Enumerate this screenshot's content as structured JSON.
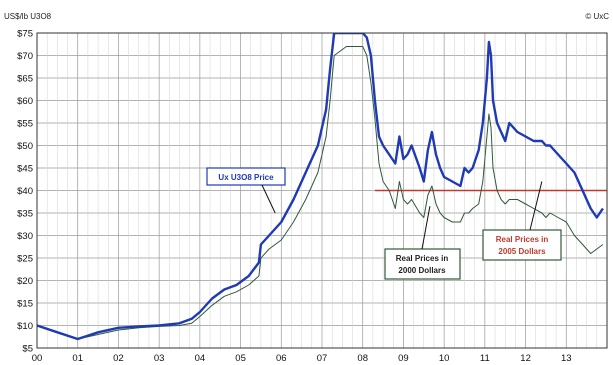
{
  "header": {
    "unit_label": "US$/lb U3O8",
    "copyright": "© UxC"
  },
  "chart_data": {
    "type": "line",
    "x_tick_labels": [
      "00",
      "01",
      "02",
      "03",
      "04",
      "05",
      "06",
      "07",
      "08",
      "09",
      "10",
      "11",
      "12",
      "13"
    ],
    "y_tick_labels": [
      "$75",
      "$70",
      "$65",
      "$60",
      "$55",
      "$50",
      "$45",
      "$40",
      "$35",
      "$30",
      "$25",
      "$20",
      "$15",
      "$10",
      "$5"
    ],
    "ylim": [
      5,
      75
    ],
    "grid": true,
    "reference_line": {
      "y": 40,
      "color": "#c0392b"
    },
    "series": [
      {
        "name": "Ux U3O8 Price",
        "color": "#1f3ab5",
        "x": [
          2000.0,
          2000.5,
          2001.0,
          2001.5,
          2002.0,
          2002.5,
          2003.0,
          2003.5,
          2003.8,
          2004.0,
          2004.3,
          2004.6,
          2004.9,
          2005.2,
          2005.45,
          2005.5,
          2005.7,
          2006.0,
          2006.3,
          2006.6,
          2006.9,
          2007.1,
          2007.2,
          2007.3,
          2007.6,
          2007.8,
          2007.9,
          2008.0,
          2008.1,
          2008.2,
          2008.3,
          2008.4,
          2008.5,
          2008.65,
          2008.8,
          2008.9,
          2009.0,
          2009.1,
          2009.2,
          2009.4,
          2009.5,
          2009.6,
          2009.7,
          2009.8,
          2009.9,
          2010.0,
          2010.2,
          2010.4,
          2010.5,
          2010.6,
          2010.7,
          2010.85,
          2010.95,
          2011.05,
          2011.1,
          2011.15,
          2011.2,
          2011.3,
          2011.4,
          2011.5,
          2011.6,
          2011.8,
          2012.0,
          2012.2,
          2012.4,
          2012.5,
          2012.6,
          2012.8,
          2013.0,
          2013.2,
          2013.4,
          2013.5,
          2013.6,
          2013.75,
          2013.9
        ],
        "y": [
          10,
          8.5,
          7,
          8.5,
          9.5,
          9.8,
          10,
          10.5,
          11.5,
          13,
          16,
          18,
          19,
          21,
          24,
          28,
          30,
          33,
          38,
          44,
          50,
          58,
          67,
          75,
          75,
          75,
          75,
          75,
          74,
          70,
          60,
          52,
          50,
          48,
          46,
          52,
          47,
          48,
          50,
          45,
          42,
          49,
          53,
          48,
          45,
          43,
          42,
          41,
          45,
          44,
          45,
          49,
          55,
          65,
          73,
          70,
          60,
          55,
          53,
          51,
          55,
          53,
          52,
          51,
          51,
          50,
          50,
          48,
          46,
          44,
          40,
          38,
          36,
          34,
          36
        ]
      },
      {
        "name": "Real Prices in 2000 Dollars",
        "color": "#2f5a3a",
        "x": [
          2000.0,
          2000.5,
          2001.0,
          2001.5,
          2002.0,
          2002.5,
          2003.0,
          2003.5,
          2003.8,
          2004.0,
          2004.3,
          2004.6,
          2004.9,
          2005.2,
          2005.45,
          2005.5,
          2005.7,
          2006.0,
          2006.3,
          2006.6,
          2006.9,
          2007.1,
          2007.2,
          2007.3,
          2007.6,
          2007.8,
          2007.9,
          2008.0,
          2008.1,
          2008.2,
          2008.3,
          2008.4,
          2008.5,
          2008.65,
          2008.8,
          2008.9,
          2009.0,
          2009.1,
          2009.2,
          2009.4,
          2009.5,
          2009.6,
          2009.7,
          2009.8,
          2009.9,
          2010.0,
          2010.2,
          2010.4,
          2010.5,
          2010.6,
          2010.7,
          2010.85,
          2010.95,
          2011.05,
          2011.1,
          2011.15,
          2011.2,
          2011.3,
          2011.4,
          2011.5,
          2011.6,
          2011.8,
          2012.0,
          2012.2,
          2012.4,
          2012.5,
          2012.6,
          2012.8,
          2013.0,
          2013.2,
          2013.4,
          2013.5,
          2013.6,
          2013.75,
          2013.9
        ],
        "y": [
          10,
          8.5,
          7,
          8,
          9,
          9.5,
          9.8,
          10,
          10.5,
          12,
          14.5,
          16.5,
          17.5,
          19,
          21,
          25,
          27,
          29,
          33,
          38,
          44,
          52,
          60,
          70,
          72,
          72,
          72,
          72,
          70,
          64,
          56,
          46,
          42,
          40,
          36,
          42,
          38,
          37,
          38,
          35,
          34,
          39,
          41,
          37,
          35,
          34,
          33,
          33,
          35,
          35,
          36,
          37,
          42,
          52,
          57,
          54,
          45,
          40,
          38,
          37,
          38,
          38,
          37,
          36,
          35,
          34,
          35,
          34,
          33,
          30,
          28,
          27,
          26,
          27,
          28
        ]
      }
    ],
    "annotations": [
      {
        "text": "Ux U3O8 Price",
        "color": "#1f3ab5",
        "points_to": {
          "x": 2005.85,
          "y": 35
        }
      },
      {
        "text_lines": [
          "Real Prices in",
          "2000 Dollars"
        ],
        "color": "#222222",
        "points_to": {
          "x": 2009.65,
          "y": 36.5
        }
      },
      {
        "text_lines": [
          "Real Prices in",
          "2005 Dollars"
        ],
        "color": "#c0392b",
        "points_to": {
          "x": 2012.4,
          "y": 42
        }
      }
    ]
  }
}
